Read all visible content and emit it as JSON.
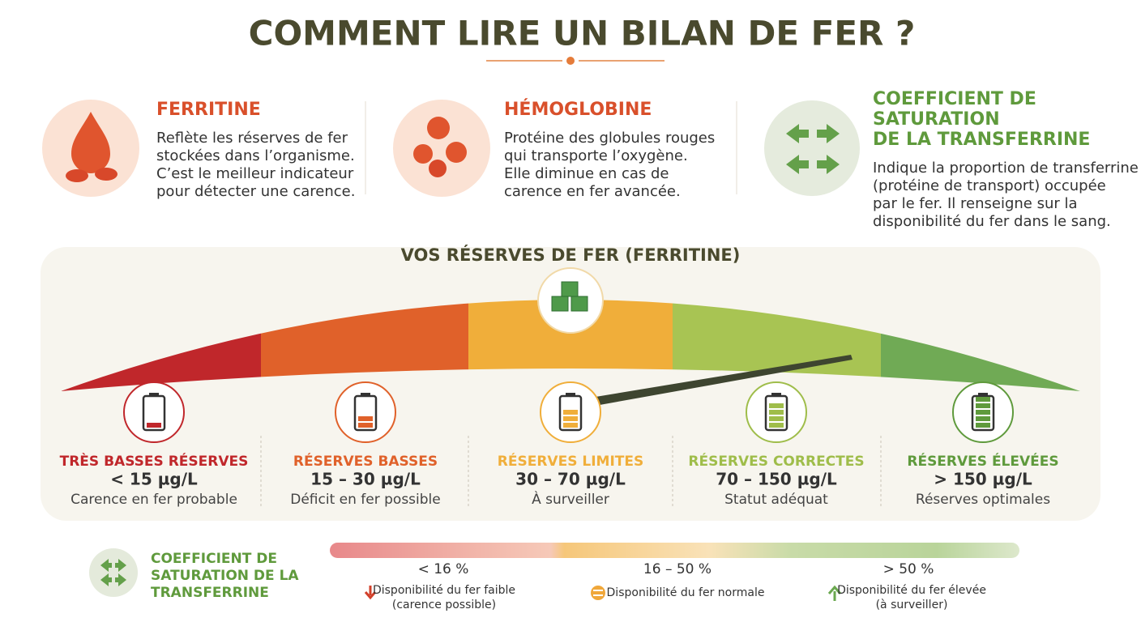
{
  "header": {
    "title": "COMMENT LIRE UN BILAN DE FER ?"
  },
  "cards": [
    {
      "title": [
        "FERRITINE"
      ],
      "lines": [
        "Reflète les réserves de fer",
        "stockées dans l’organisme.",
        "C’est le meilleur indicateur",
        "pour détecter une carence."
      ]
    },
    {
      "title": [
        "HÉMOGLOBINE"
      ],
      "lines": [
        "Protéine des globules rouges",
        "qui transporte l’oxygène.",
        "Elle diminue en cas de",
        "carence en fer avancée."
      ]
    },
    {
      "title": [
        "COEFFICIENT DE",
        "SATURATION",
        "DE LA TRANSFERRINE"
      ],
      "lines": [
        "Indique la proportion de transferrine",
        "(protéine de transport) occupée",
        "par le fer. Il renseigne sur la",
        "disponibilité du fer dans le sang."
      ]
    }
  ],
  "gauge": {
    "title": "VOS RÉSERVES DE FER (FERRITINE)",
    "levels": [
      {
        "label": "TRÈS BASSES RÉSERVES",
        "range": "< 15 µg/L",
        "note": "Carence en fer probable"
      },
      {
        "label": "RÉSERVES BASSES",
        "range": "15 – 30 µg/L",
        "note": "Déficit en fer possible"
      },
      {
        "label": "RÉSERVES LIMITES",
        "range": "30 – 70 µg/L",
        "note": "À surveiller"
      },
      {
        "label": "RÉSERVES CORRECTES",
        "range": "70 – 150 µg/L",
        "note": "Statut adéquat"
      },
      {
        "label": "RÉSERVES ÉLEVÉES",
        "range": "> 150 µg/L",
        "note": "Réserves optimales"
      }
    ]
  },
  "saturation": {
    "title": [
      "COEFFICIENT DE",
      "SATURATION DE LA",
      "TRANSFERRINE"
    ],
    "ranges": [
      {
        "label": "< 16 %",
        "note": [
          "Disponibilité du fer faible",
          "(carence possible)"
        ]
      },
      {
        "label": "16 – 50 %",
        "note": [
          "Disponibilité du fer normale"
        ]
      },
      {
        "label": "> 50 %",
        "note": [
          "Disponibilité du fer élevée",
          "(à surveiller)"
        ]
      }
    ]
  }
}
